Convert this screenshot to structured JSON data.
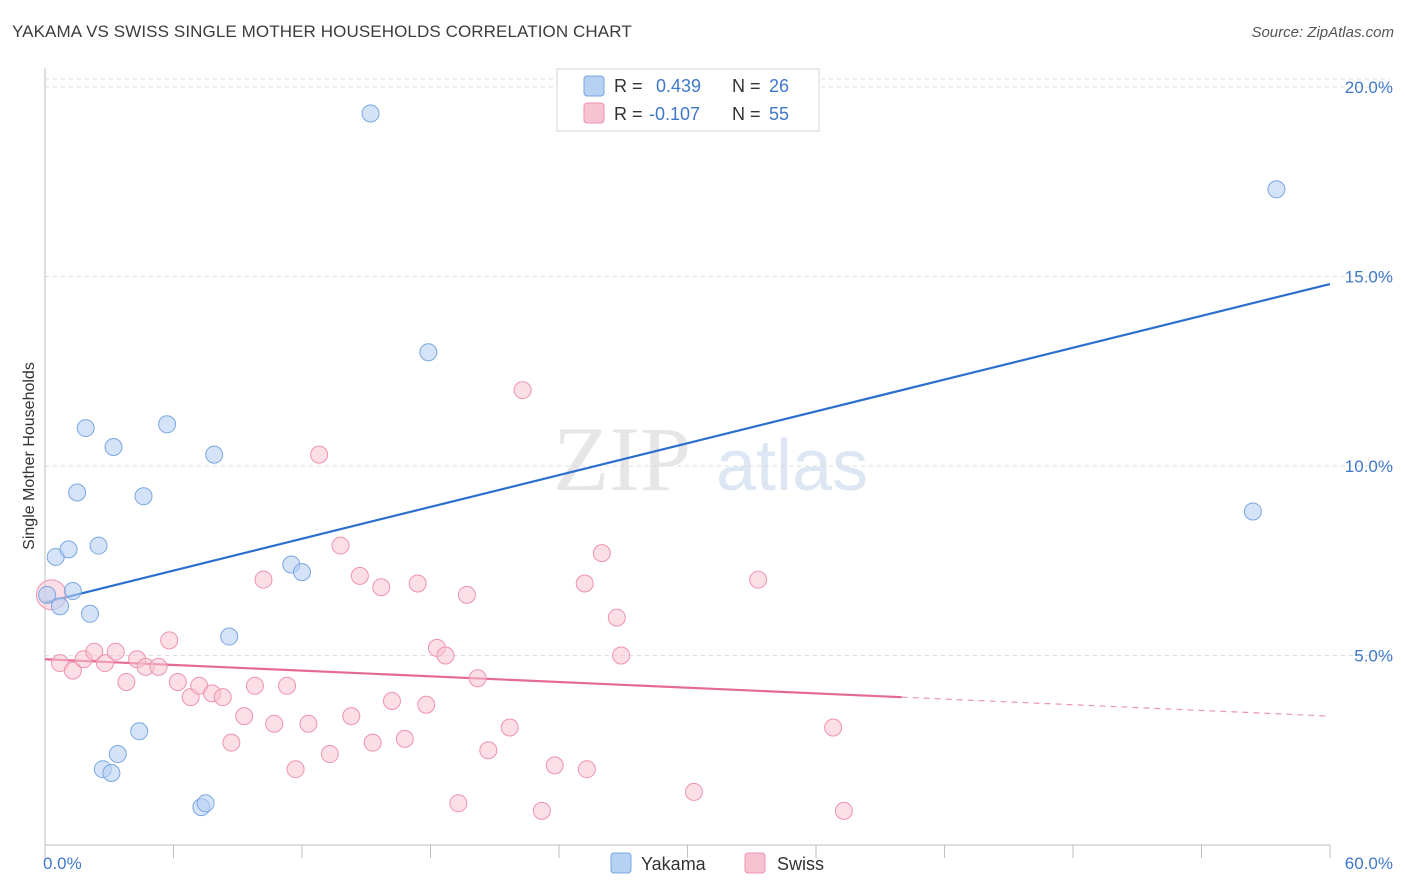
{
  "header": {
    "title": "YAKAMA VS SWISS SINGLE MOTHER HOUSEHOLDS CORRELATION CHART",
    "source": "Source: ZipAtlas.com"
  },
  "watermark": {
    "zip": "ZIP",
    "atlas": "atlas"
  },
  "colors": {
    "yakama_fill": "#b7d1f3",
    "yakama_stroke": "#7aa7e0",
    "yakama_line": "#2b6fce",
    "swiss_fill": "#f7c3d2",
    "swiss_stroke": "#ee93ae",
    "swiss_line": "#e56a93",
    "axis_label": "#3f78c9",
    "grid": "#dcdcdc"
  },
  "legend": {
    "rows": [
      {
        "r_label": "R =",
        "r_value": "0.439",
        "n_label": "N =",
        "n_value": "26"
      },
      {
        "r_label": "R =",
        "r_value": "-0.107",
        "n_label": "N =",
        "n_value": "55"
      }
    ]
  },
  "chart_data": {
    "type": "scatter",
    "title": "YAKAMA VS SWISS SINGLE MOTHER HOUSEHOLDS CORRELATION CHART",
    "xlabel": "",
    "ylabel": "Single Mother Households",
    "xlim": [
      0,
      60
    ],
    "ylim": [
      0,
      20.5
    ],
    "x_tick_labels": [
      "0.0%",
      "60.0%"
    ],
    "y_ticks": [
      5,
      10,
      15,
      20
    ],
    "y_tick_labels": [
      "5.0%",
      "10.0%",
      "15.0%",
      "20.0%"
    ],
    "series": [
      {
        "name": "Yakama",
        "color": "#b7d1f3",
        "points": [
          [
            0.1,
            6.6
          ],
          [
            0.7,
            6.3
          ],
          [
            0.5,
            7.6
          ],
          [
            1.1,
            7.8
          ],
          [
            1.3,
            6.7
          ],
          [
            1.5,
            9.3
          ],
          [
            1.9,
            11.0
          ],
          [
            2.1,
            6.1
          ],
          [
            2.5,
            7.9
          ],
          [
            3.2,
            10.5
          ],
          [
            4.6,
            9.2
          ],
          [
            5.7,
            11.1
          ],
          [
            7.9,
            10.3
          ],
          [
            4.4,
            3.0
          ],
          [
            3.4,
            2.4
          ],
          [
            2.7,
            2.0
          ],
          [
            3.1,
            1.9
          ],
          [
            7.3,
            1.0
          ],
          [
            7.5,
            1.1
          ],
          [
            8.6,
            5.5
          ],
          [
            11.5,
            7.4
          ],
          [
            12.0,
            7.2
          ],
          [
            15.2,
            19.3
          ],
          [
            17.9,
            13.0
          ],
          [
            56.4,
            8.8
          ],
          [
            57.5,
            17.3
          ]
        ],
        "trend": {
          "x": [
            0,
            60
          ],
          "y": [
            6.4,
            14.8
          ]
        }
      },
      {
        "name": "Swiss",
        "color": "#f7c3d2",
        "points": [
          [
            0.3,
            6.6
          ],
          [
            0.7,
            4.8
          ],
          [
            1.3,
            4.6
          ],
          [
            1.8,
            4.9
          ],
          [
            2.3,
            5.1
          ],
          [
            2.8,
            4.8
          ],
          [
            3.3,
            5.1
          ],
          [
            3.8,
            4.3
          ],
          [
            4.3,
            4.9
          ],
          [
            4.7,
            4.7
          ],
          [
            5.3,
            4.7
          ],
          [
            5.8,
            5.4
          ],
          [
            6.2,
            4.3
          ],
          [
            6.8,
            3.9
          ],
          [
            7.2,
            4.2
          ],
          [
            7.8,
            4.0
          ],
          [
            8.3,
            3.9
          ],
          [
            8.7,
            2.7
          ],
          [
            9.3,
            3.4
          ],
          [
            9.8,
            4.2
          ],
          [
            10.2,
            7.0
          ],
          [
            10.7,
            3.2
          ],
          [
            11.3,
            4.2
          ],
          [
            11.7,
            2.0
          ],
          [
            12.3,
            3.2
          ],
          [
            12.8,
            10.3
          ],
          [
            13.3,
            2.4
          ],
          [
            13.8,
            7.9
          ],
          [
            14.3,
            3.4
          ],
          [
            14.7,
            7.1
          ],
          [
            15.3,
            2.7
          ],
          [
            15.7,
            6.8
          ],
          [
            16.2,
            3.8
          ],
          [
            16.8,
            2.8
          ],
          [
            17.4,
            6.9
          ],
          [
            17.8,
            3.7
          ],
          [
            18.3,
            5.2
          ],
          [
            18.7,
            5.0
          ],
          [
            19.3,
            1.1
          ],
          [
            19.7,
            6.6
          ],
          [
            20.2,
            4.4
          ],
          [
            20.7,
            2.5
          ],
          [
            21.7,
            3.1
          ],
          [
            22.3,
            12.0
          ],
          [
            23.2,
            0.9
          ],
          [
            23.8,
            2.1
          ],
          [
            25.2,
            6.9
          ],
          [
            25.3,
            2.0
          ],
          [
            26.0,
            7.7
          ],
          [
            26.7,
            6.0
          ],
          [
            26.9,
            5.0
          ],
          [
            30.3,
            1.4
          ],
          [
            33.3,
            7.0
          ],
          [
            36.8,
            3.1
          ],
          [
            37.3,
            0.9
          ]
        ],
        "trend": {
          "x": [
            0,
            40
          ],
          "y": [
            4.9,
            3.9
          ]
        },
        "trend_extrapolated": {
          "x": [
            40,
            60
          ],
          "y": [
            3.9,
            3.4
          ]
        }
      }
    ],
    "legend_entries": [
      "Yakama",
      "Swiss"
    ],
    "grid": true,
    "legend_position": "top-center"
  }
}
